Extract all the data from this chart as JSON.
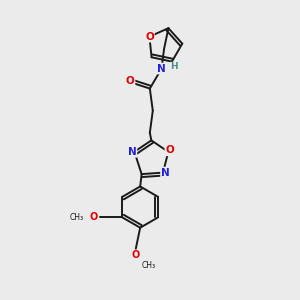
{
  "background_color": "#ebebeb",
  "bond_color": "#1a1a1a",
  "atom_colors": {
    "O": "#e00000",
    "N": "#2020e0",
    "H": "#4a9090"
  },
  "lw": 1.4,
  "fs": 7.5
}
